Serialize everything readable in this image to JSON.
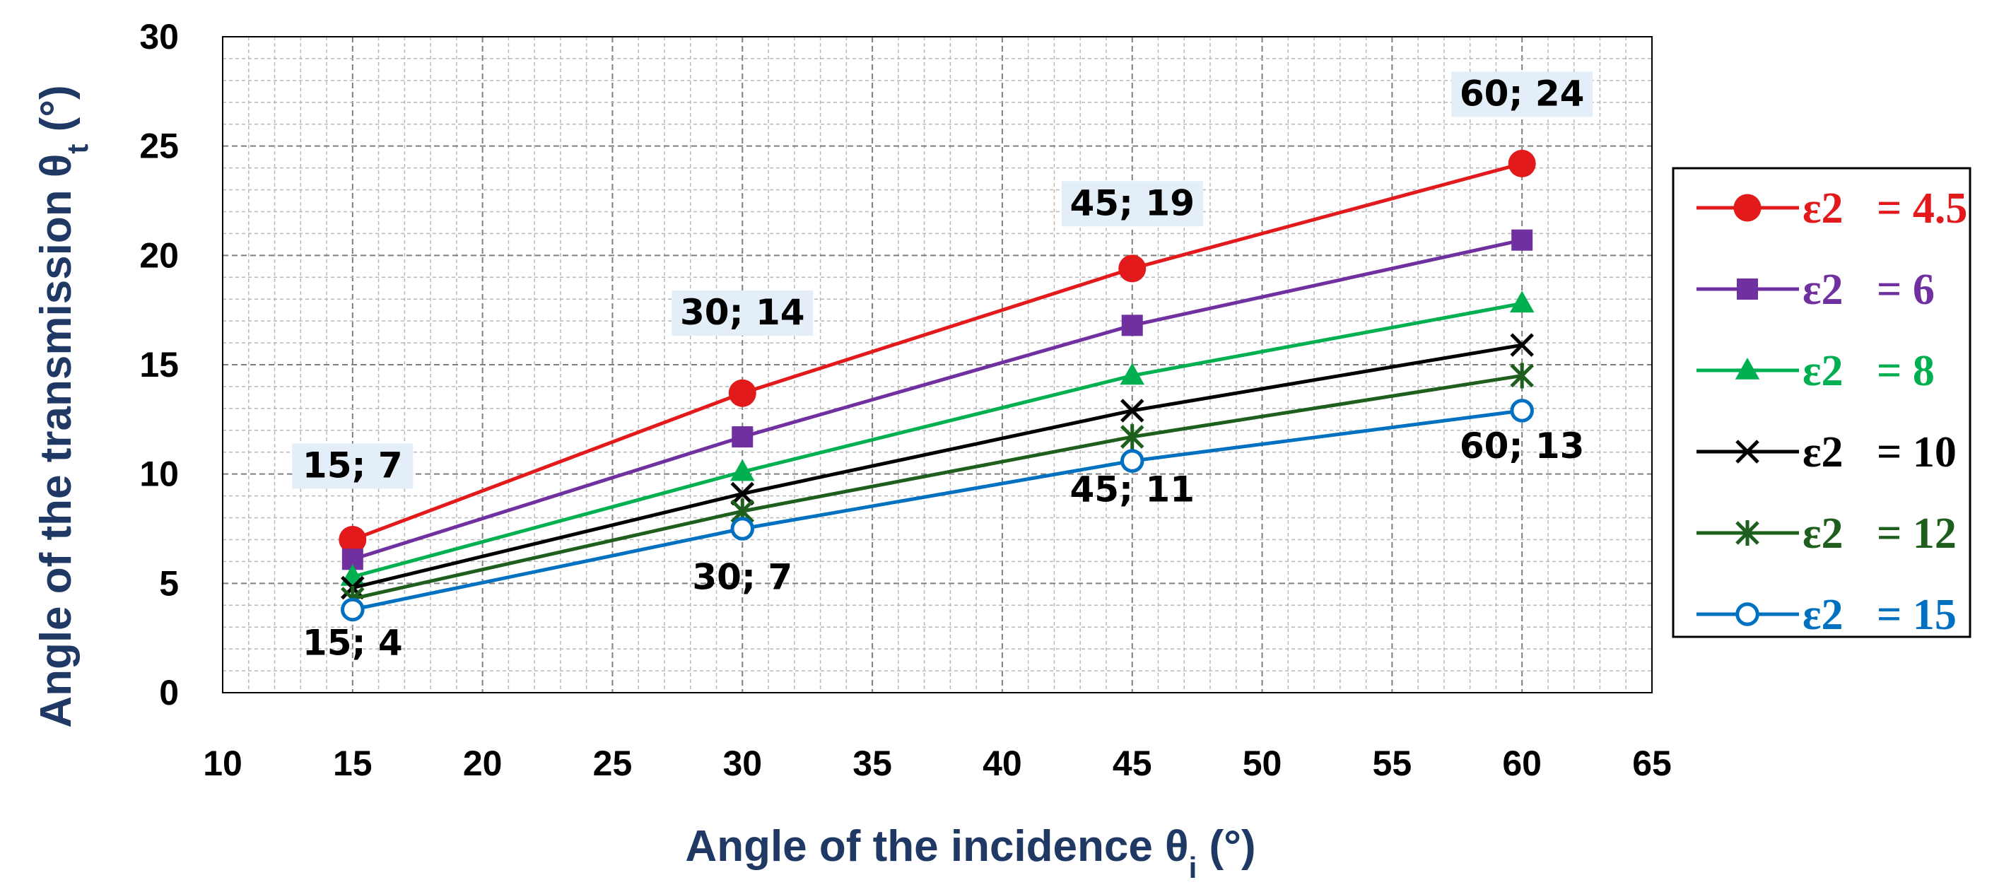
{
  "chart_data": {
    "type": "line",
    "title": "",
    "xlabel": {
      "main": "Angle of the incidence θ",
      "sub": "i",
      "unit": " (°)"
    },
    "ylabel": {
      "main": "Angle of the transmission θ",
      "sub": "t",
      "unit": " (°)"
    },
    "xlim": [
      10,
      65
    ],
    "ylim": [
      0,
      30
    ],
    "xticks": [
      10,
      15,
      20,
      25,
      30,
      35,
      40,
      45,
      50,
      55,
      60,
      65
    ],
    "yticks": [
      0,
      5,
      10,
      15,
      20,
      25,
      30
    ],
    "grid": true,
    "legend_position": "right",
    "x": [
      15,
      30,
      45,
      60
    ],
    "series": [
      {
        "name": "ε2 = 4.5",
        "label_prefix": "ε2",
        "label_value": "= 4.5",
        "color": "#e31a1c",
        "marker": "circle",
        "values": [
          7.0,
          13.7,
          19.4,
          24.2
        ]
      },
      {
        "name": "ε2 = 6",
        "label_prefix": "ε2",
        "label_value": "= 6",
        "color": "#7030a0",
        "marker": "square",
        "values": [
          6.1,
          11.7,
          16.8,
          20.7
        ]
      },
      {
        "name": "ε2 = 8",
        "label_prefix": "ε2",
        "label_value": "= 8",
        "color": "#00b050",
        "marker": "triangle",
        "values": [
          5.3,
          10.1,
          14.5,
          17.8
        ]
      },
      {
        "name": "ε2 = 10",
        "label_prefix": "ε2",
        "label_value": "= 10",
        "color": "#000000",
        "marker": "x",
        "values": [
          4.8,
          9.1,
          12.9,
          15.9
        ]
      },
      {
        "name": "ε2 = 12",
        "label_prefix": "ε2",
        "label_value": "= 12",
        "color": "#1e5f1e",
        "marker": "star",
        "values": [
          4.3,
          8.3,
          11.7,
          14.5
        ]
      },
      {
        "name": "ε2 = 15",
        "label_prefix": "ε2",
        "label_value": "= 15",
        "color": "#0070c0",
        "marker": "open-circle",
        "values": [
          3.8,
          7.5,
          10.6,
          12.9
        ]
      }
    ],
    "annotations": [
      {
        "text": "15; 7",
        "x": 15,
        "y": 7,
        "placement": "above",
        "highlight": true
      },
      {
        "text": "30; 14",
        "x": 30,
        "y": 14,
        "placement": "above",
        "highlight": true
      },
      {
        "text": "45; 19",
        "x": 45,
        "y": 19,
        "placement": "above",
        "highlight": true
      },
      {
        "text": "60; 24",
        "x": 60,
        "y": 24,
        "placement": "above",
        "highlight": true
      },
      {
        "text": "15; 4",
        "x": 15,
        "y": 4,
        "placement": "below",
        "highlight": false
      },
      {
        "text": "30; 7",
        "x": 30,
        "y": 7,
        "placement": "below",
        "highlight": false
      },
      {
        "text": "45; 11",
        "x": 45,
        "y": 11,
        "placement": "below",
        "highlight": false
      },
      {
        "text": "60; 13",
        "x": 60,
        "y": 13,
        "placement": "below",
        "highlight": false
      }
    ]
  }
}
